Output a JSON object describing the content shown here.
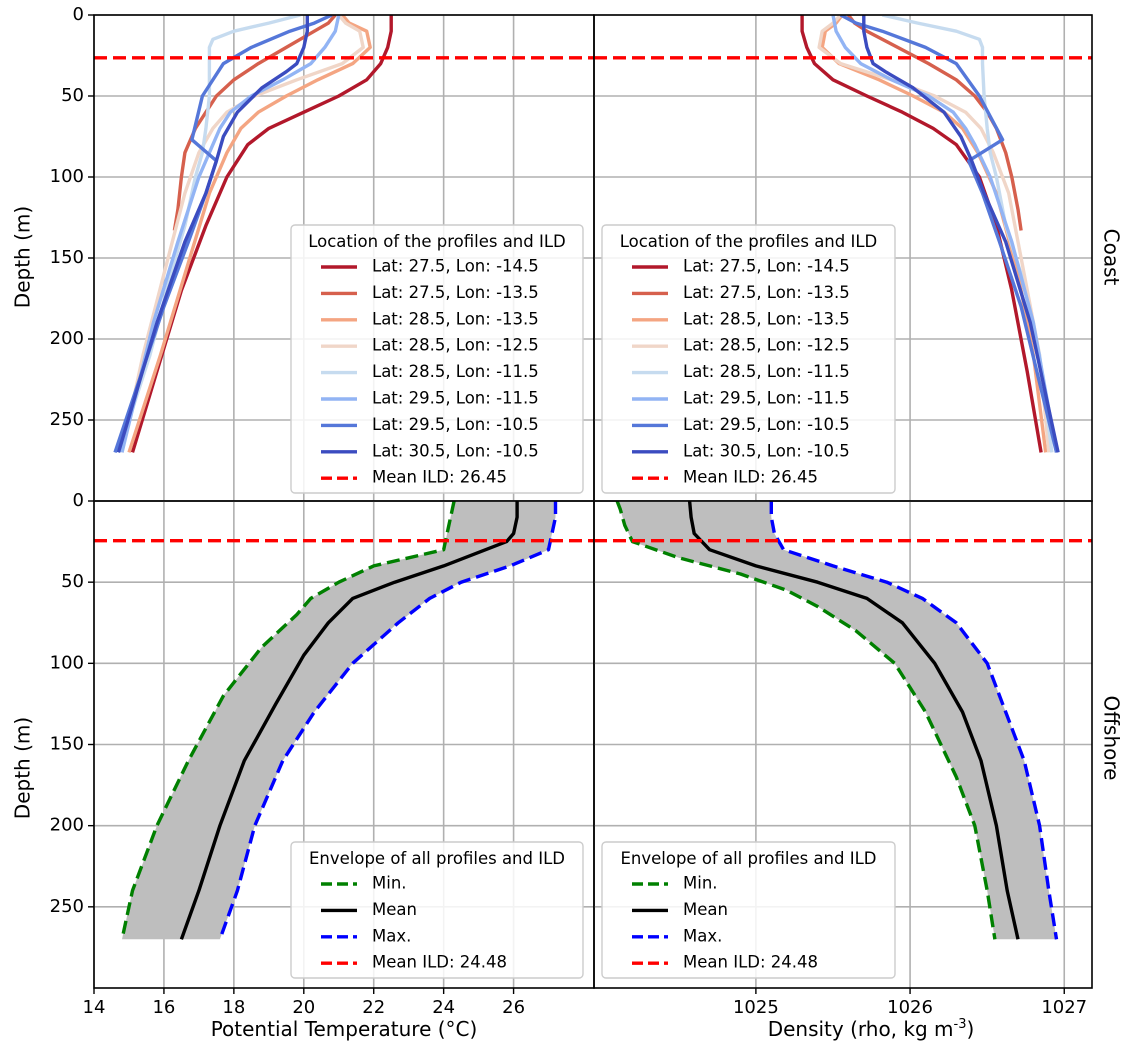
{
  "figure": {
    "row_labels": [
      "Coast",
      "Offshore"
    ],
    "ylabel": "Depth (m)",
    "xlabel_temperature": "Potential Temperature (°C)",
    "xlabel_density_main": "Density (rho, kg m",
    "xlabel_density_sup": "-3",
    "xlabel_density_close": ")"
  },
  "chart_data": [
    {
      "panel": "top-left",
      "type": "line",
      "row": "Coast",
      "xlabel": "",
      "ylabel": "Depth (m)",
      "xlim": [
        14,
        28.3
      ],
      "ylim": [
        0,
        300
      ],
      "y_inverted": true,
      "xticks": [
        14,
        16,
        18,
        20,
        22,
        24,
        26
      ],
      "yticks": [
        0,
        50,
        100,
        150,
        200,
        250
      ],
      "grid": true,
      "legend": {
        "title": "Location of the profiles and ILD",
        "placement": "lower-right"
      },
      "series": [
        {
          "name": "Lat: 27.5, Lon: -14.5",
          "color": "#b2182b",
          "x": [
            22.5,
            22.5,
            22.4,
            22.2,
            21.8,
            21.0,
            20.0,
            19.0,
            18.4,
            17.8,
            17.2,
            16.5,
            15.8,
            15.1
          ],
          "y": [
            0,
            10,
            20,
            30,
            40,
            50,
            60,
            70,
            80,
            100,
            130,
            170,
            220,
            270
          ]
        },
        {
          "name": "Lat: 27.5, Lon: -13.5",
          "color": "#d6604d",
          "x": [
            20.9,
            20.7,
            20.3,
            19.5,
            18.7,
            18.0,
            17.5,
            17.2,
            16.9,
            16.6,
            16.5,
            16.4,
            16.3
          ],
          "y": [
            0,
            5,
            10,
            20,
            30,
            40,
            50,
            60,
            70,
            85,
            100,
            120,
            133
          ]
        },
        {
          "name": "Lat: 28.5, Lon: -13.5",
          "color": "#f4a582",
          "x": [
            21.1,
            21.3,
            21.8,
            21.9,
            21.4,
            20.4,
            19.5,
            18.7,
            18.2,
            17.8,
            17.3,
            16.6,
            15.9,
            15.0
          ],
          "y": [
            0,
            5,
            10,
            20,
            30,
            40,
            50,
            60,
            70,
            85,
            110,
            160,
            210,
            270
          ]
        },
        {
          "name": "Lat: 28.5, Lon: -12.5",
          "color": "#f0d6c8",
          "x": [
            21.0,
            21.2,
            21.6,
            21.7,
            21.1,
            19.8,
            18.6,
            17.8,
            17.4,
            17.0,
            16.6,
            16.0,
            15.4,
            14.8
          ],
          "y": [
            0,
            5,
            10,
            20,
            30,
            40,
            50,
            60,
            70,
            85,
            110,
            160,
            210,
            270
          ]
        },
        {
          "name": "Lat: 28.5, Lon: -11.5",
          "color": "#c6dbef",
          "x": [
            19.9,
            19.0,
            18.0,
            17.4,
            17.3,
            17.3,
            17.3,
            17.2,
            17.1,
            16.9,
            16.6,
            16.2,
            15.6,
            14.7
          ],
          "y": [
            0,
            5,
            10,
            15,
            20,
            30,
            50,
            70,
            85,
            100,
            130,
            160,
            210,
            270
          ]
        },
        {
          "name": "Lat: 29.5, Lon: -11.5",
          "color": "#92b4f4",
          "x": [
            21.0,
            20.9,
            20.6,
            20.2,
            19.4,
            18.5,
            17.9,
            17.6,
            17.4,
            17.0,
            16.4,
            15.7,
            14.8
          ],
          "y": [
            0,
            10,
            20,
            30,
            40,
            50,
            60,
            70,
            80,
            100,
            140,
            190,
            270
          ]
        },
        {
          "name": "Lat: 29.5, Lon: -10.5",
          "color": "#5577d9",
          "x": [
            20.8,
            20.3,
            19.6,
            18.5,
            17.7,
            17.1,
            16.8,
            17.5,
            17.2,
            16.7,
            16.0,
            14.6
          ],
          "y": [
            0,
            5,
            10,
            20,
            30,
            50,
            77,
            90,
            110,
            140,
            180,
            270
          ]
        },
        {
          "name": "Lat: 30.5, Lon: -10.5",
          "color": "#3b4cc0",
          "x": [
            20.1,
            20.1,
            20.0,
            19.8,
            19.5,
            18.8,
            18.1,
            17.7,
            17.5,
            17.2,
            16.6,
            15.8,
            14.7
          ],
          "y": [
            0,
            10,
            20,
            30,
            35,
            45,
            60,
            75,
            90,
            110,
            140,
            190,
            270
          ]
        },
        {
          "name": "Mean ILD: 26.45",
          "color": "#ff0000",
          "style": "dashed",
          "x": [
            14,
            28.3
          ],
          "y": [
            26.45,
            26.45
          ]
        }
      ]
    },
    {
      "panel": "top-right",
      "type": "line",
      "row": "Coast",
      "xlabel": "",
      "ylabel": "",
      "xlim": [
        1023.95,
        1027.18
      ],
      "ylim": [
        0,
        300
      ],
      "y_inverted": true,
      "xticks": [
        1025,
        1026,
        1027
      ],
      "yticks": [
        0,
        50,
        100,
        150,
        200,
        250
      ],
      "grid": true,
      "legend": {
        "title": "Location of the profiles and ILD",
        "placement": "lower-left"
      },
      "series": [
        {
          "name": "Lat: 27.5, Lon: -14.5",
          "color": "#b2182b",
          "x": [
            1025.3,
            1025.3,
            1025.33,
            1025.38,
            1025.5,
            1025.72,
            1025.95,
            1026.15,
            1026.3,
            1026.45,
            1026.56,
            1026.66,
            1026.76,
            1026.85
          ],
          "y": [
            0,
            10,
            20,
            30,
            40,
            50,
            60,
            70,
            80,
            100,
            130,
            170,
            220,
            270
          ]
        },
        {
          "name": "Lat: 27.5, Lon: -13.5",
          "color": "#d6604d",
          "x": [
            1025.6,
            1025.64,
            1025.72,
            1025.92,
            1026.12,
            1026.3,
            1026.42,
            1026.5,
            1026.56,
            1026.62,
            1026.66,
            1026.7,
            1026.72
          ],
          "y": [
            0,
            5,
            10,
            20,
            30,
            40,
            50,
            60,
            70,
            85,
            100,
            120,
            133
          ]
        },
        {
          "name": "Lat: 28.5, Lon: -13.5",
          "color": "#f4a582",
          "x": [
            1025.56,
            1025.52,
            1025.45,
            1025.43,
            1025.54,
            1025.8,
            1026.02,
            1026.22,
            1026.34,
            1026.44,
            1026.56,
            1026.7,
            1026.8,
            1026.88
          ],
          "y": [
            0,
            5,
            10,
            20,
            30,
            40,
            50,
            60,
            70,
            85,
            110,
            160,
            210,
            270
          ]
        },
        {
          "name": "Lat: 28.5, Lon: -12.5",
          "color": "#f0d6c8",
          "x": [
            1025.55,
            1025.5,
            1025.43,
            1025.41,
            1025.55,
            1025.88,
            1026.16,
            1026.36,
            1026.46,
            1026.54,
            1026.64,
            1026.74,
            1026.84,
            1026.9
          ],
          "y": [
            0,
            5,
            10,
            20,
            30,
            40,
            50,
            60,
            70,
            85,
            110,
            160,
            210,
            270
          ]
        },
        {
          "name": "Lat: 28.5, Lon: -11.5",
          "color": "#c6dbef",
          "x": [
            1025.82,
            1026.05,
            1026.3,
            1026.45,
            1026.47,
            1026.47,
            1026.48,
            1026.5,
            1026.52,
            1026.56,
            1026.62,
            1026.72,
            1026.84,
            1026.92
          ],
          "y": [
            0,
            5,
            10,
            15,
            20,
            30,
            50,
            70,
            85,
            100,
            130,
            160,
            210,
            270
          ]
        },
        {
          "name": "Lat: 29.5, Lon: -11.5",
          "color": "#92b4f4",
          "x": [
            1025.5,
            1025.52,
            1025.58,
            1025.68,
            1025.88,
            1026.12,
            1026.28,
            1026.36,
            1026.42,
            1026.52,
            1026.66,
            1026.8,
            1026.95
          ],
          "y": [
            0,
            10,
            20,
            30,
            40,
            50,
            60,
            70,
            80,
            100,
            140,
            190,
            270
          ]
        },
        {
          "name": "Lat: 29.5, Lon: -10.5",
          "color": "#5577d9",
          "x": [
            1025.55,
            1025.65,
            1025.82,
            1026.1,
            1026.3,
            1026.45,
            1026.6,
            1026.38,
            1026.47,
            1026.58,
            1026.72,
            1026.95
          ],
          "y": [
            0,
            5,
            10,
            20,
            30,
            50,
            77,
            90,
            110,
            140,
            180,
            270
          ]
        },
        {
          "name": "Lat: 30.5, Lon: -10.5",
          "color": "#3b4cc0",
          "x": [
            1025.7,
            1025.7,
            1025.72,
            1025.76,
            1025.84,
            1026.02,
            1026.22,
            1026.33,
            1026.4,
            1026.48,
            1026.62,
            1026.78,
            1026.96
          ],
          "y": [
            0,
            10,
            20,
            30,
            35,
            45,
            60,
            75,
            90,
            110,
            140,
            190,
            270
          ]
        },
        {
          "name": "Mean ILD: 26.45",
          "color": "#ff0000",
          "style": "dashed",
          "x": [
            1023.95,
            1027.18
          ],
          "y": [
            26.45,
            26.45
          ]
        }
      ]
    },
    {
      "panel": "bottom-left",
      "type": "area",
      "row": "Offshore",
      "xlabel": "Potential Temperature (°C)",
      "ylabel": "Depth (m)",
      "xlim": [
        14,
        28.3
      ],
      "ylim": [
        0,
        300
      ],
      "y_inverted": true,
      "xticks": [
        14,
        16,
        18,
        20,
        22,
        24,
        26
      ],
      "xticklabels": [
        "14",
        "16",
        "18",
        "20",
        "22",
        "24",
        "26"
      ],
      "yticks": [
        0,
        50,
        100,
        150,
        200,
        250
      ],
      "grid": true,
      "fill": {
        "between": [
          "Min.",
          "Max."
        ],
        "color": "#bebebe"
      },
      "legend": {
        "title": "Envelope of all profiles and ILD",
        "placement": "lower-right"
      },
      "series": [
        {
          "name": "Min.",
          "color": "#008000",
          "style": "dashed",
          "x": [
            24.3,
            24.2,
            24.1,
            24.0,
            22.0,
            21.0,
            20.2,
            19.8,
            18.8,
            17.7,
            16.7,
            15.8,
            15.1,
            14.8
          ],
          "y": [
            0,
            10,
            20,
            30,
            40,
            50,
            60,
            70,
            90,
            120,
            160,
            200,
            240,
            270
          ]
        },
        {
          "name": "Mean",
          "color": "#000000",
          "style": "solid",
          "x": [
            26.1,
            26.1,
            26.0,
            25.8,
            24.0,
            22.6,
            21.4,
            20.7,
            20.0,
            19.2,
            18.3,
            17.6,
            17.0,
            16.5
          ],
          "y": [
            0,
            10,
            20,
            25,
            40,
            50,
            60,
            75,
            95,
            125,
            160,
            200,
            240,
            270
          ]
        },
        {
          "name": "Max.",
          "color": "#0000ff",
          "style": "dashed",
          "x": [
            27.2,
            27.2,
            27.1,
            27.0,
            25.9,
            24.5,
            23.6,
            22.7,
            21.4,
            20.3,
            19.4,
            18.6,
            18.1,
            17.6
          ],
          "y": [
            0,
            10,
            20,
            30,
            40,
            50,
            60,
            75,
            100,
            130,
            160,
            200,
            240,
            270
          ]
        },
        {
          "name": "Mean ILD: 24.48",
          "color": "#ff0000",
          "style": "dashed",
          "x": [
            14,
            28.3
          ],
          "y": [
            24.48,
            24.48
          ]
        }
      ]
    },
    {
      "panel": "bottom-right",
      "type": "area",
      "row": "Offshore",
      "xlabel": "Density (rho, kg m-3)",
      "ylabel": "",
      "xlim": [
        1023.95,
        1027.18
      ],
      "ylim": [
        0,
        300
      ],
      "y_inverted": true,
      "xticks": [
        1025,
        1026,
        1027
      ],
      "xticklabels": [
        "1025",
        "1026",
        "1027"
      ],
      "yticks": [
        0,
        50,
        100,
        150,
        200,
        250
      ],
      "grid": true,
      "fill": {
        "between": [
          "Min.",
          "Max."
        ],
        "color": "#bebebe"
      },
      "legend": {
        "title": "Envelope of all profiles and ILD",
        "placement": "lower-left"
      },
      "series": [
        {
          "name": "Min.",
          "color": "#008000",
          "style": "dashed",
          "x": [
            1024.1,
            1024.12,
            1024.15,
            1024.2,
            1024.5,
            1024.9,
            1025.2,
            1025.4,
            1025.65,
            1025.9,
            1026.1,
            1026.3,
            1026.42,
            1026.5,
            1026.55
          ],
          "y": [
            0,
            5,
            15,
            25,
            35,
            45,
            55,
            65,
            80,
            100,
            130,
            170,
            200,
            240,
            270
          ]
        },
        {
          "name": "Mean",
          "color": "#000000",
          "style": "solid",
          "x": [
            1024.57,
            1024.58,
            1024.6,
            1024.7,
            1025.0,
            1025.4,
            1025.72,
            1025.95,
            1026.16,
            1026.34,
            1026.46,
            1026.56,
            1026.63,
            1026.7
          ],
          "y": [
            0,
            10,
            20,
            30,
            40,
            50,
            60,
            75,
            100,
            130,
            160,
            200,
            240,
            270
          ]
        },
        {
          "name": "Max.",
          "color": "#0000ff",
          "style": "dashed",
          "x": [
            1025.1,
            1025.1,
            1025.12,
            1025.18,
            1025.5,
            1025.85,
            1026.08,
            1026.3,
            1026.5,
            1026.62,
            1026.74,
            1026.84,
            1026.9,
            1026.95
          ],
          "y": [
            0,
            10,
            20,
            30,
            40,
            50,
            60,
            75,
            100,
            130,
            160,
            200,
            240,
            270
          ]
        },
        {
          "name": "Mean ILD: 24.48",
          "color": "#ff0000",
          "style": "dashed",
          "x": [
            1023.95,
            1027.18
          ],
          "y": [
            24.48,
            24.48
          ]
        }
      ]
    }
  ]
}
